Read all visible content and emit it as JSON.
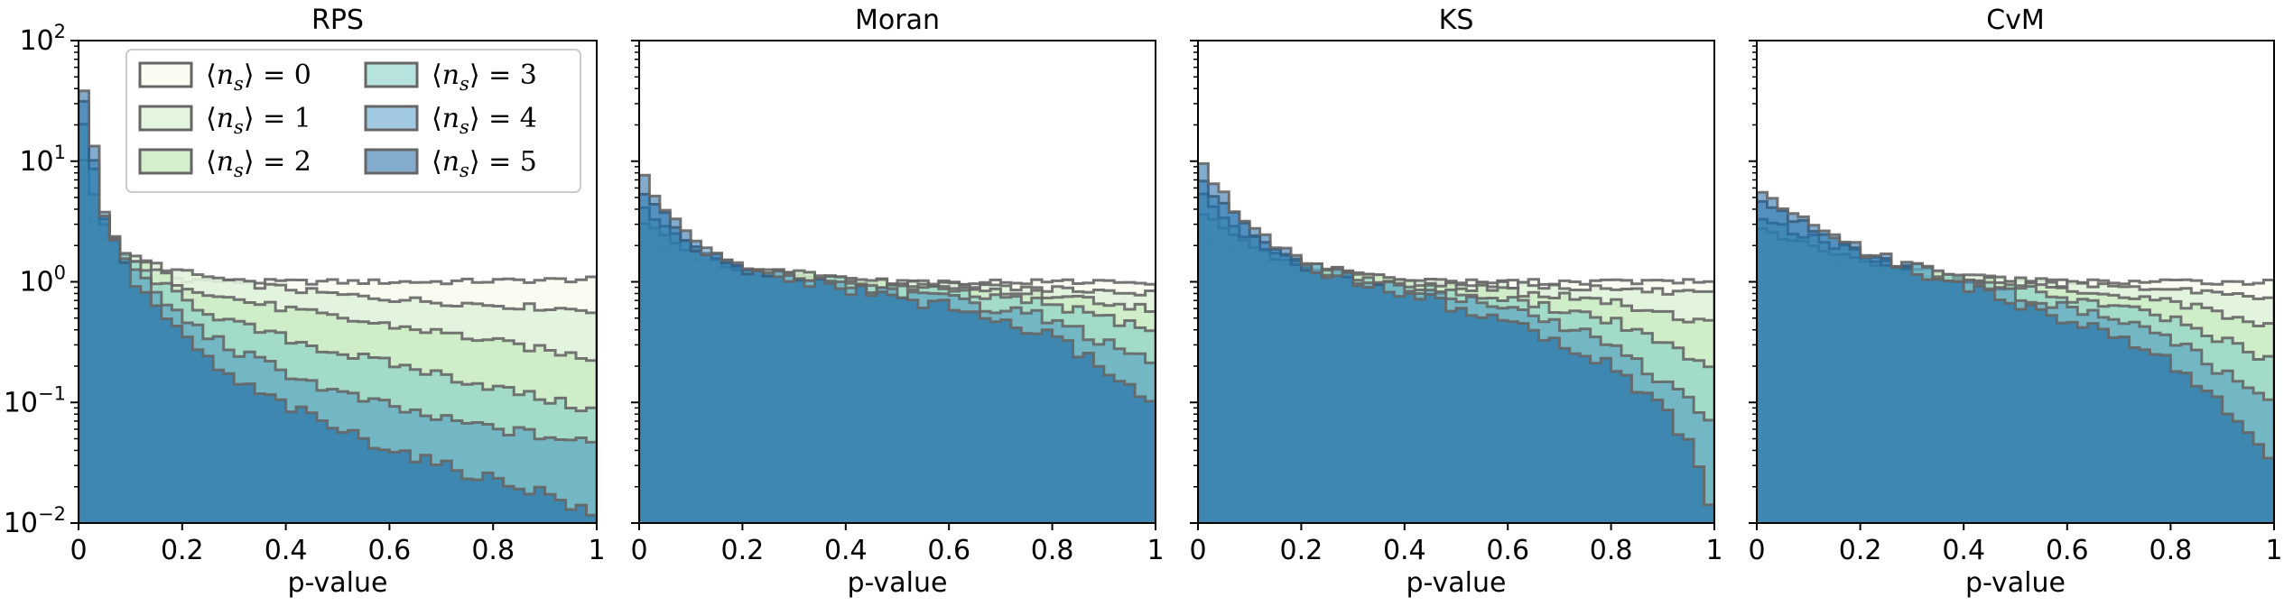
{
  "chart_data": [
    {
      "type": "histogram",
      "title": "RPS",
      "xlabel": "p-value",
      "ylabel": "",
      "xlim": [
        0,
        1
      ],
      "ylim": [
        0.01,
        100
      ],
      "yscale": "log",
      "bin_width": 0.02,
      "legend": {
        "location": "top-left",
        "ncol": 2,
        "entries": [
          "⟨n_s⟩ = 0",
          "⟨n_s⟩ = 1",
          "⟨n_s⟩ = 2",
          "⟨n_s⟩ = 3",
          "⟨n_s⟩ = 4",
          "⟨n_s⟩ = 5"
        ]
      },
      "series": [
        {
          "name": "⟨n_s⟩ = 0",
          "curve": [
            [
              0.01,
              1.7
            ],
            [
              0.05,
              1.4
            ],
            [
              0.1,
              1.2
            ],
            [
              0.2,
              1.05
            ],
            [
              0.3,
              1.0
            ],
            [
              0.5,
              1.0
            ],
            [
              0.7,
              1.0
            ],
            [
              1.0,
              1.05
            ]
          ]
        },
        {
          "name": "⟨n_s⟩ = 1",
          "curve": [
            [
              0.01,
              5
            ],
            [
              0.05,
              2.3
            ],
            [
              0.1,
              1.6
            ],
            [
              0.2,
              1.2
            ],
            [
              0.3,
              1.0
            ],
            [
              0.5,
              0.78
            ],
            [
              0.7,
              0.68
            ],
            [
              1.0,
              0.58
            ]
          ]
        },
        {
          "name": "⟨n_s⟩ = 2",
          "curve": [
            [
              0.01,
              10
            ],
            [
              0.05,
              2.8
            ],
            [
              0.1,
              1.6
            ],
            [
              0.2,
              0.95
            ],
            [
              0.3,
              0.72
            ],
            [
              0.5,
              0.5
            ],
            [
              0.7,
              0.38
            ],
            [
              1.0,
              0.23
            ]
          ]
        },
        {
          "name": "⟨n_s⟩ = 3",
          "curve": [
            [
              0.01,
              20
            ],
            [
              0.05,
              3.2
            ],
            [
              0.1,
              1.5
            ],
            [
              0.2,
              0.72
            ],
            [
              0.3,
              0.45
            ],
            [
              0.5,
              0.26
            ],
            [
              0.7,
              0.17
            ],
            [
              1.0,
              0.085
            ]
          ]
        },
        {
          "name": "⟨n_s⟩ = 4",
          "curve": [
            [
              0.01,
              30
            ],
            [
              0.05,
              3.6
            ],
            [
              0.1,
              1.3
            ],
            [
              0.2,
              0.5
            ],
            [
              0.3,
              0.27
            ],
            [
              0.5,
              0.12
            ],
            [
              0.7,
              0.072
            ],
            [
              1.0,
              0.045
            ]
          ]
        },
        {
          "name": "⟨n_s⟩ = 5",
          "curve": [
            [
              0.01,
              40
            ],
            [
              0.05,
              3.8
            ],
            [
              0.1,
              1.1
            ],
            [
              0.2,
              0.35
            ],
            [
              0.3,
              0.15
            ],
            [
              0.5,
              0.06
            ],
            [
              0.7,
              0.03
            ],
            [
              0.9,
              0.018
            ],
            [
              1.0,
              0.011
            ]
          ]
        }
      ]
    },
    {
      "type": "histogram",
      "title": "Moran",
      "xlabel": "p-value",
      "ylabel": "",
      "xlim": [
        0,
        1
      ],
      "ylim": [
        0.01,
        100
      ],
      "yscale": "log",
      "bin_width": 0.02,
      "series": [
        {
          "name": "⟨n_s⟩ = 0",
          "curve": [
            [
              0.01,
              1.1
            ],
            [
              0.2,
              1.0
            ],
            [
              0.5,
              1.0
            ],
            [
              0.8,
              1.0
            ],
            [
              1.0,
              1.0
            ]
          ]
        },
        {
          "name": "⟨n_s⟩ = 1",
          "curve": [
            [
              0.01,
              2.0
            ],
            [
              0.1,
              1.5
            ],
            [
              0.2,
              1.2
            ],
            [
              0.4,
              1.05
            ],
            [
              0.6,
              0.95
            ],
            [
              0.8,
              0.87
            ],
            [
              1.0,
              0.8
            ]
          ]
        },
        {
          "name": "⟨n_s⟩ = 2",
          "curve": [
            [
              0.01,
              3.0
            ],
            [
              0.1,
              1.8
            ],
            [
              0.2,
              1.3
            ],
            [
              0.4,
              1.05
            ],
            [
              0.6,
              0.9
            ],
            [
              0.8,
              0.78
            ],
            [
              1.0,
              0.6
            ]
          ]
        },
        {
          "name": "⟨n_s⟩ = 3",
          "curve": [
            [
              0.01,
              4.0
            ],
            [
              0.1,
              1.9
            ],
            [
              0.2,
              1.3
            ],
            [
              0.4,
              1.0
            ],
            [
              0.6,
              0.82
            ],
            [
              0.8,
              0.65
            ],
            [
              1.0,
              0.4
            ]
          ]
        },
        {
          "name": "⟨n_s⟩ = 4",
          "curve": [
            [
              0.01,
              5.5
            ],
            [
              0.1,
              2.0
            ],
            [
              0.2,
              1.3
            ],
            [
              0.4,
              0.95
            ],
            [
              0.6,
              0.72
            ],
            [
              0.8,
              0.5
            ],
            [
              1.0,
              0.2
            ]
          ]
        },
        {
          "name": "⟨n_s⟩ = 5",
          "curve": [
            [
              0.01,
              7.0
            ],
            [
              0.1,
              2.1
            ],
            [
              0.2,
              1.25
            ],
            [
              0.4,
              0.88
            ],
            [
              0.6,
              0.62
            ],
            [
              0.8,
              0.35
            ],
            [
              0.9,
              0.2
            ],
            [
              1.0,
              0.09
            ]
          ]
        }
      ]
    },
    {
      "type": "histogram",
      "title": "KS",
      "xlabel": "p-value",
      "ylabel": "",
      "xlim": [
        0,
        1
      ],
      "ylim": [
        0.01,
        100
      ],
      "yscale": "log",
      "bin_width": 0.02,
      "series": [
        {
          "name": "⟨n_s⟩ = 0",
          "curve": [
            [
              0.01,
              1.1
            ],
            [
              0.2,
              1.0
            ],
            [
              0.5,
              1.0
            ],
            [
              0.8,
              1.0
            ],
            [
              1.0,
              1.0
            ]
          ]
        },
        {
          "name": "⟨n_s⟩ = 1",
          "curve": [
            [
              0.01,
              2.2
            ],
            [
              0.1,
              1.6
            ],
            [
              0.2,
              1.25
            ],
            [
              0.4,
              1.05
            ],
            [
              0.6,
              0.95
            ],
            [
              0.8,
              0.88
            ],
            [
              1.0,
              0.78
            ]
          ]
        },
        {
          "name": "⟨n_s⟩ = 2",
          "curve": [
            [
              0.01,
              3.5
            ],
            [
              0.1,
              2.0
            ],
            [
              0.2,
              1.35
            ],
            [
              0.4,
              1.02
            ],
            [
              0.6,
              0.85
            ],
            [
              0.8,
              0.68
            ],
            [
              1.0,
              0.45
            ]
          ]
        },
        {
          "name": "⟨n_s⟩ = 3",
          "curve": [
            [
              0.01,
              5.0
            ],
            [
              0.1,
              2.3
            ],
            [
              0.2,
              1.4
            ],
            [
              0.4,
              0.95
            ],
            [
              0.6,
              0.72
            ],
            [
              0.8,
              0.48
            ],
            [
              1.0,
              0.2
            ]
          ]
        },
        {
          "name": "⟨n_s⟩ = 4",
          "curve": [
            [
              0.01,
              7.0
            ],
            [
              0.1,
              2.5
            ],
            [
              0.2,
              1.4
            ],
            [
              0.4,
              0.88
            ],
            [
              0.6,
              0.6
            ],
            [
              0.8,
              0.32
            ],
            [
              1.0,
              0.07
            ]
          ]
        },
        {
          "name": "⟨n_s⟩ = 5",
          "curve": [
            [
              0.01,
              9.5
            ],
            [
              0.1,
              2.7
            ],
            [
              0.2,
              1.4
            ],
            [
              0.4,
              0.8
            ],
            [
              0.6,
              0.48
            ],
            [
              0.8,
              0.2
            ],
            [
              0.9,
              0.09
            ],
            [
              0.96,
              0.04
            ],
            [
              1.0,
              0.011
            ]
          ]
        }
      ]
    },
    {
      "type": "histogram",
      "title": "CvM",
      "xlabel": "p-value",
      "ylabel": "",
      "xlim": [
        0,
        1
      ],
      "ylim": [
        0.01,
        100
      ],
      "yscale": "log",
      "bin_width": 0.02,
      "series": [
        {
          "name": "⟨n_s⟩ = 0",
          "curve": [
            [
              0.01,
              1.1
            ],
            [
              0.2,
              1.0
            ],
            [
              0.5,
              1.0
            ],
            [
              0.8,
              1.0
            ],
            [
              1.0,
              1.0
            ]
          ]
        },
        {
          "name": "⟨n_s⟩ = 1",
          "curve": [
            [
              0.01,
              1.8
            ],
            [
              0.1,
              1.5
            ],
            [
              0.2,
              1.3
            ],
            [
              0.4,
              1.1
            ],
            [
              0.6,
              0.97
            ],
            [
              0.8,
              0.88
            ],
            [
              1.0,
              0.75
            ]
          ]
        },
        {
          "name": "⟨n_s⟩ = 2",
          "curve": [
            [
              0.01,
              2.6
            ],
            [
              0.1,
              2.0
            ],
            [
              0.2,
              1.55
            ],
            [
              0.4,
              1.1
            ],
            [
              0.6,
              0.88
            ],
            [
              0.8,
              0.7
            ],
            [
              1.0,
              0.42
            ]
          ]
        },
        {
          "name": "⟨n_s⟩ = 3",
          "curve": [
            [
              0.01,
              3.5
            ],
            [
              0.1,
              2.4
            ],
            [
              0.2,
              1.7
            ],
            [
              0.4,
              1.05
            ],
            [
              0.6,
              0.75
            ],
            [
              0.8,
              0.5
            ],
            [
              1.0,
              0.22
            ]
          ]
        },
        {
          "name": "⟨n_s⟩ = 4",
          "curve": [
            [
              0.01,
              4.5
            ],
            [
              0.1,
              2.8
            ],
            [
              0.2,
              1.8
            ],
            [
              0.4,
              0.98
            ],
            [
              0.6,
              0.62
            ],
            [
              0.8,
              0.35
            ],
            [
              1.0,
              0.09
            ]
          ]
        },
        {
          "name": "⟨n_s⟩ = 5",
          "curve": [
            [
              0.01,
              5.5
            ],
            [
              0.1,
              3.2
            ],
            [
              0.2,
              1.85
            ],
            [
              0.4,
              0.9
            ],
            [
              0.6,
              0.5
            ],
            [
              0.8,
              0.22
            ],
            [
              0.9,
              0.1
            ],
            [
              1.0,
              0.03
            ]
          ]
        }
      ]
    }
  ],
  "styles": {
    "fill_colors": [
      "#f7fcf0",
      "#e0f3db",
      "#ccebc5",
      "#7bccc4",
      "#4393c3",
      "#08589e"
    ],
    "fill_alphas": [
      0.9,
      0.9,
      0.85,
      0.55,
      0.5,
      0.5
    ],
    "edge_color": "#666666"
  }
}
